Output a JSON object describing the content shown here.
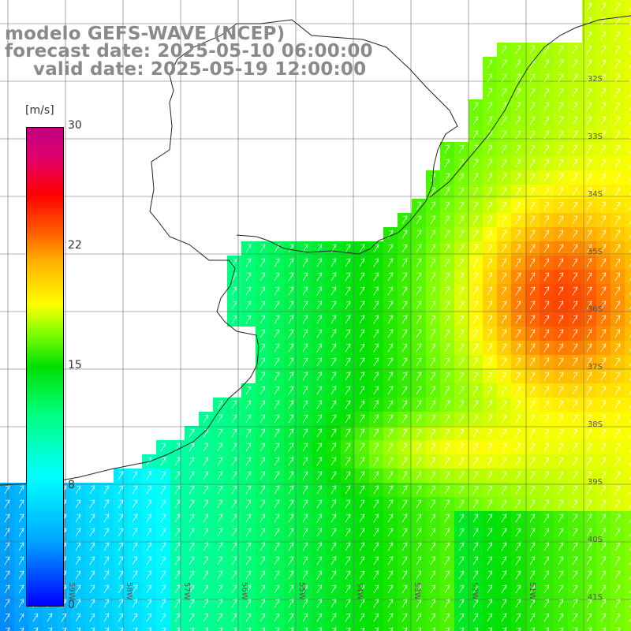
{
  "title": {
    "line1": "modelo GEFS-WAVE (NCEP)",
    "line2": "forecast date: 2025-05-10 06:00:00",
    "line3": "valid date: 2025-05-19 12:00:00"
  },
  "colorbar": {
    "units": "[m/s]",
    "ticks": [
      "30",
      "22",
      "15",
      "8",
      "0"
    ],
    "tick_values": [
      30,
      22,
      15,
      8,
      0
    ],
    "colors": [
      "#0000ff",
      "#00aaff",
      "#00ffff",
      "#00ff80",
      "#00e000",
      "#80ff00",
      "#ffff00",
      "#ffb000",
      "#ff6000",
      "#ff0000",
      "#c00080"
    ]
  },
  "lat_labels": [
    "32S",
    "33S",
    "34S",
    "35S",
    "36S",
    "37S",
    "38S",
    "39S",
    "40S",
    "41S"
  ],
  "lon_labels": [
    "59W",
    "58W",
    "57W",
    "56W",
    "55W",
    "54W",
    "53W",
    "52W",
    "51W"
  ],
  "field": {
    "variable": "wind speed",
    "wind_direction": "from south-west, blowing toward north-east"
  }
}
